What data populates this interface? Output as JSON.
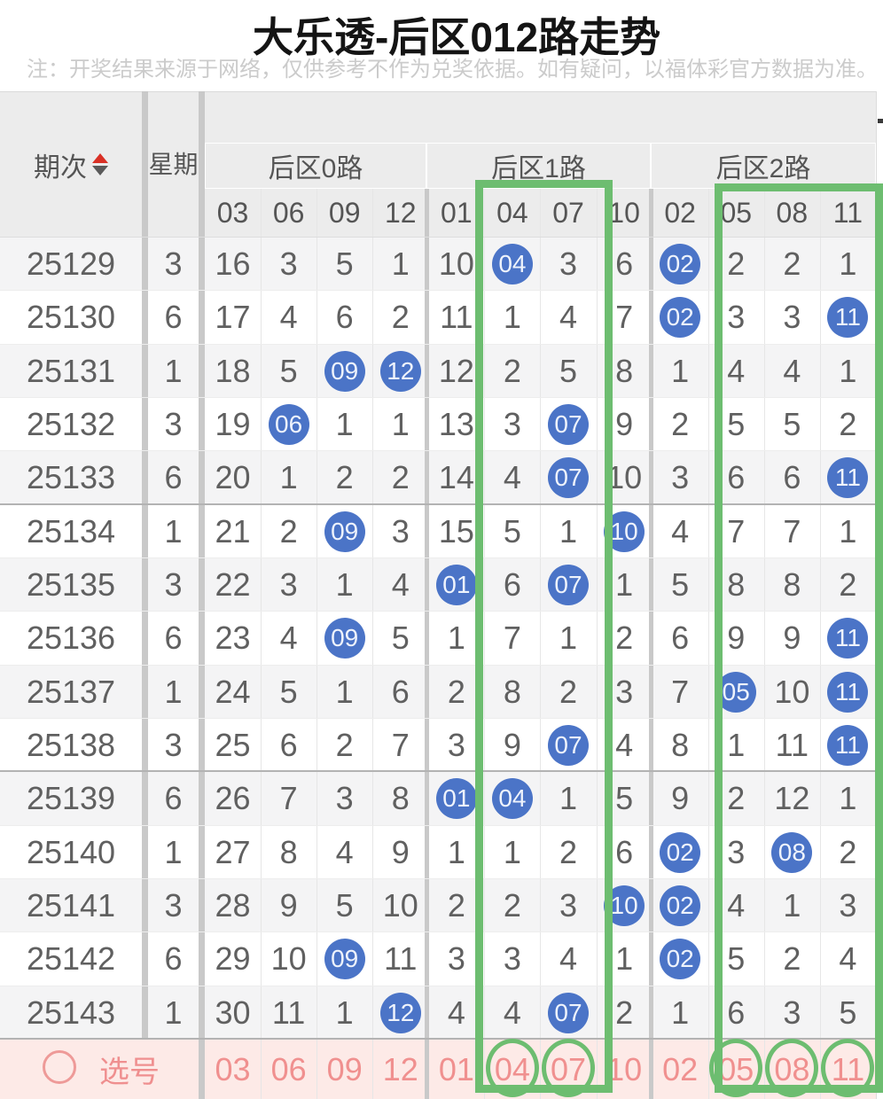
{
  "title": "大乐透-后区012路走势",
  "note": "注：开奖结果来源于网络，仅供参考不作为兑奖依据。如有疑问，以福体彩官方数据为准。",
  "colors": {
    "highlight_green": "#6dbd70",
    "ball_blue": "#4b74c7",
    "pink_text": "#ef8f8f",
    "pink_bg": "#fdeae7",
    "sort_up_red": "#d93025",
    "sort_down_gray": "#5a5a5a"
  },
  "table": {
    "period_header": "期次",
    "week_header": "星期",
    "groups": [
      {
        "label": "后区0路",
        "cols": [
          "03",
          "06",
          "09",
          "12"
        ]
      },
      {
        "label": "后区1路",
        "cols": [
          "01",
          "04",
          "07",
          "10"
        ]
      },
      {
        "label": "后区2路",
        "cols": [
          "02",
          "05",
          "08",
          "11"
        ]
      }
    ],
    "rows": [
      {
        "period": "25129",
        "week": "3",
        "cells": [
          "16",
          "3",
          "5",
          "1",
          "10",
          "04",
          "3",
          "6",
          "02",
          "2",
          "2",
          "1"
        ],
        "balls": [
          5,
          8
        ]
      },
      {
        "period": "25130",
        "week": "6",
        "cells": [
          "17",
          "4",
          "6",
          "2",
          "11",
          "1",
          "4",
          "7",
          "02",
          "3",
          "3",
          "11"
        ],
        "balls": [
          8,
          11
        ]
      },
      {
        "period": "25131",
        "week": "1",
        "cells": [
          "18",
          "5",
          "09",
          "12",
          "12",
          "2",
          "5",
          "8",
          "1",
          "4",
          "4",
          "1"
        ],
        "balls": [
          2,
          3
        ]
      },
      {
        "period": "25132",
        "week": "3",
        "cells": [
          "19",
          "06",
          "1",
          "1",
          "13",
          "3",
          "07",
          "9",
          "2",
          "5",
          "5",
          "2"
        ],
        "balls": [
          1,
          6
        ]
      },
      {
        "period": "25133",
        "week": "6",
        "cells": [
          "20",
          "1",
          "2",
          "2",
          "14",
          "4",
          "07",
          "10",
          "3",
          "6",
          "6",
          "11"
        ],
        "balls": [
          6,
          11
        ]
      },
      {
        "period": "25134",
        "week": "1",
        "cells": [
          "21",
          "2",
          "09",
          "3",
          "15",
          "5",
          "1",
          "10",
          "4",
          "7",
          "7",
          "1"
        ],
        "balls": [
          2,
          7
        ]
      },
      {
        "period": "25135",
        "week": "3",
        "cells": [
          "22",
          "3",
          "1",
          "4",
          "01",
          "6",
          "07",
          "1",
          "5",
          "8",
          "8",
          "2"
        ],
        "balls": [
          4,
          6
        ]
      },
      {
        "period": "25136",
        "week": "6",
        "cells": [
          "23",
          "4",
          "09",
          "5",
          "1",
          "7",
          "1",
          "2",
          "6",
          "9",
          "9",
          "11"
        ],
        "balls": [
          2,
          11
        ]
      },
      {
        "period": "25137",
        "week": "1",
        "cells": [
          "24",
          "5",
          "1",
          "6",
          "2",
          "8",
          "2",
          "3",
          "7",
          "05",
          "10",
          "11"
        ],
        "balls": [
          9,
          11
        ]
      },
      {
        "period": "25138",
        "week": "3",
        "cells": [
          "25",
          "6",
          "2",
          "7",
          "3",
          "9",
          "07",
          "4",
          "8",
          "1",
          "11",
          "11"
        ],
        "balls": [
          6,
          11
        ]
      },
      {
        "period": "25139",
        "week": "6",
        "cells": [
          "26",
          "7",
          "3",
          "8",
          "01",
          "04",
          "1",
          "5",
          "9",
          "2",
          "12",
          "1"
        ],
        "balls": [
          4,
          5
        ]
      },
      {
        "period": "25140",
        "week": "1",
        "cells": [
          "27",
          "8",
          "4",
          "9",
          "1",
          "1",
          "2",
          "6",
          "02",
          "3",
          "08",
          "2"
        ],
        "balls": [
          8,
          10
        ]
      },
      {
        "period": "25141",
        "week": "3",
        "cells": [
          "28",
          "9",
          "5",
          "10",
          "2",
          "2",
          "3",
          "10",
          "02",
          "4",
          "1",
          "3"
        ],
        "balls": [
          7,
          8
        ]
      },
      {
        "period": "25142",
        "week": "6",
        "cells": [
          "29",
          "10",
          "09",
          "11",
          "3",
          "3",
          "4",
          "1",
          "02",
          "5",
          "2",
          "4"
        ],
        "balls": [
          2,
          8
        ]
      },
      {
        "period": "25143",
        "week": "1",
        "cells": [
          "30",
          "11",
          "1",
          "12",
          "4",
          "4",
          "07",
          "2",
          "1",
          "6",
          "3",
          "5"
        ],
        "balls": [
          3,
          6
        ]
      }
    ],
    "select_row": {
      "label": "选号",
      "numbers": [
        "03",
        "06",
        "09",
        "12",
        "01",
        "04",
        "07",
        "10",
        "02",
        "05",
        "08",
        "11"
      ],
      "circled_indexes": [
        5,
        6,
        9,
        10,
        11
      ]
    },
    "highlighted_columns": [
      [
        "04",
        "07"
      ],
      [
        "05",
        "08",
        "11"
      ]
    ]
  }
}
